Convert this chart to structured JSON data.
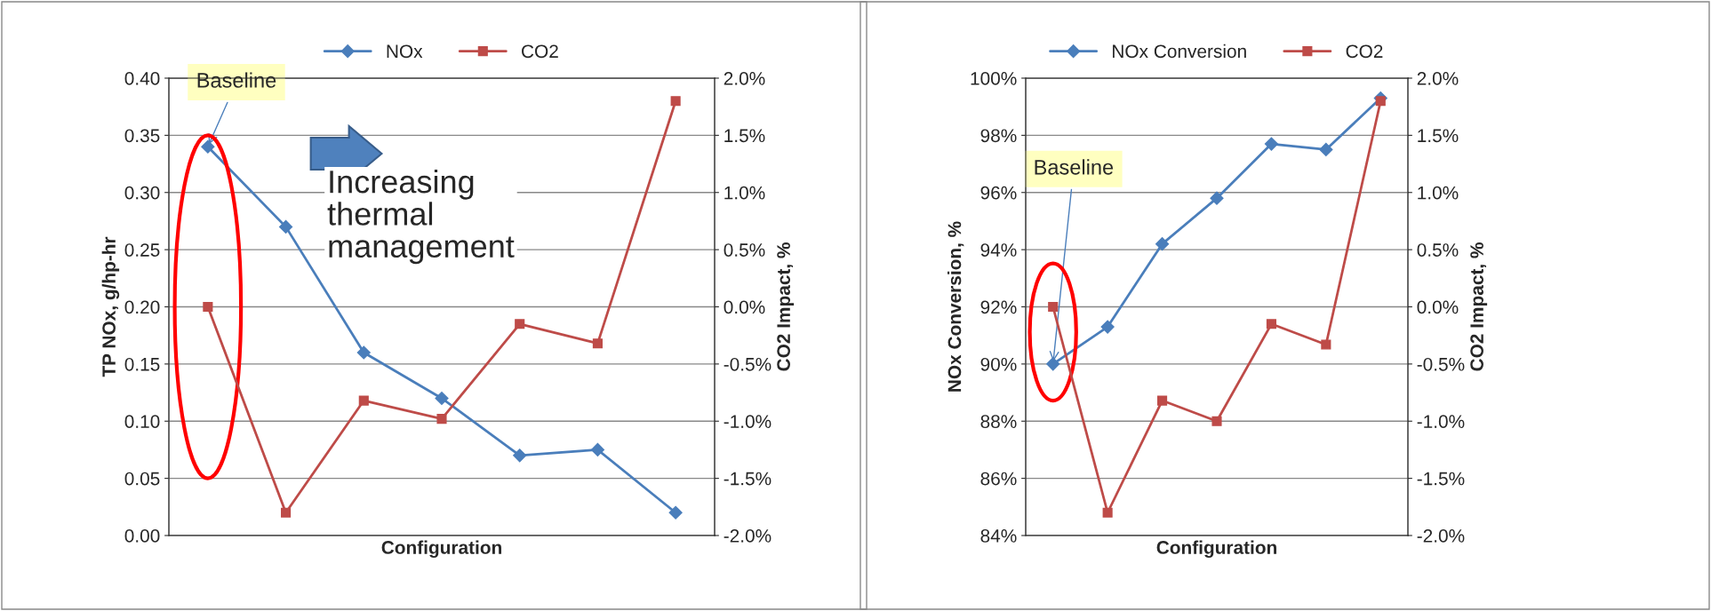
{
  "chart_data": [
    {
      "type": "line",
      "categories": [
        null,
        null,
        null,
        null,
        null,
        null,
        null
      ],
      "xlabel": "Configuration",
      "ylabel": "TP NOx, g/hp-hr",
      "y2label": "CO2 Impact, %",
      "series": [
        {
          "name": "NOx",
          "color": "#4a7ebb",
          "marker": "diamond",
          "values": [
            0.34,
            0.27,
            0.16,
            0.12,
            0.07,
            0.075,
            0.02
          ]
        },
        {
          "name": "CO2",
          "color": "#be4b48",
          "marker": "square",
          "axis": "y2",
          "values": [
            0.0,
            -1.8,
            -0.82,
            -0.98,
            -0.15,
            -0.32,
            1.8
          ]
        }
      ],
      "ylim": [
        0,
        0.4
      ],
      "yticks": [
        {
          "value": 0,
          "label": "0.00"
        },
        {
          "value": 0.05,
          "label": "0.05"
        },
        {
          "value": 0.1,
          "label": "0.10"
        },
        {
          "value": 0.15,
          "label": "0.15"
        },
        {
          "value": 0.2,
          "label": "0.20"
        },
        {
          "value": 0.25,
          "label": "0.25"
        },
        {
          "value": 0.3,
          "label": "0.30"
        },
        {
          "value": 0.35,
          "label": "0.35"
        },
        {
          "value": 0.4,
          "label": "0.40"
        }
      ],
      "y2lim": [
        -2,
        2
      ],
      "y2ticks": [
        {
          "value": -2,
          "label": "-2.0%"
        },
        {
          "value": -1.5,
          "label": "-1.5%"
        },
        {
          "value": -1,
          "label": "-1.0%"
        },
        {
          "value": -0.5,
          "label": "-0.5%"
        },
        {
          "value": 0,
          "label": "0.0%"
        },
        {
          "value": 0.5,
          "label": "0.5%"
        },
        {
          "value": 1,
          "label": "1.0%"
        },
        {
          "value": 1.5,
          "label": "1.5%"
        },
        {
          "value": 2,
          "label": "2.0%"
        }
      ],
      "annotations": [
        "Baseline",
        "Increasing thermal management"
      ],
      "grid": "y",
      "legend": "top",
      "tick_labels": "y",
      "line_style": "solid"
    },
    {
      "type": "line",
      "categories": [
        null,
        null,
        null,
        null,
        null,
        null,
        null
      ],
      "xlabel": "Configuration",
      "ylabel": "NOx Conversion, %",
      "y2label": "CO2 Impact, %",
      "series": [
        {
          "name": "NOx Conversion",
          "color": "#4a7ebb",
          "marker": "diamond",
          "values": [
            90.0,
            91.3,
            94.2,
            95.8,
            97.7,
            97.5,
            99.3
          ]
        },
        {
          "name": "CO2",
          "color": "#be4b48",
          "marker": "square",
          "axis": "y2",
          "values": [
            0.0,
            -1.8,
            -0.82,
            -1.0,
            -0.15,
            -0.33,
            1.8
          ]
        }
      ],
      "ylim": [
        84,
        100
      ],
      "yticks": [
        {
          "value": 84,
          "label": "84%"
        },
        {
          "value": 86,
          "label": "86%"
        },
        {
          "value": 88,
          "label": "88%"
        },
        {
          "value": 90,
          "label": "90%"
        },
        {
          "value": 92,
          "label": "92%"
        },
        {
          "value": 94,
          "label": "94%"
        },
        {
          "value": 96,
          "label": "96%"
        },
        {
          "value": 98,
          "label": "98%"
        },
        {
          "value": 100,
          "label": "100%"
        }
      ],
      "y2lim": [
        -2,
        2
      ],
      "y2ticks": [
        {
          "value": -2,
          "label": "-2.0%"
        },
        {
          "value": -1.5,
          "label": "-1.5%"
        },
        {
          "value": -1,
          "label": "-1.0%"
        },
        {
          "value": -0.5,
          "label": "-0.5%"
        },
        {
          "value": 0,
          "label": "0.0%"
        },
        {
          "value": 0.5,
          "label": "0.5%"
        },
        {
          "value": 1,
          "label": "1.0%"
        },
        {
          "value": 1.5,
          "label": "1.5%"
        },
        {
          "value": 2,
          "label": "2.0%"
        }
      ],
      "annotations": [
        "Baseline"
      ],
      "grid": "y",
      "legend": "top",
      "tick_labels": "y",
      "line_style": "solid"
    }
  ]
}
